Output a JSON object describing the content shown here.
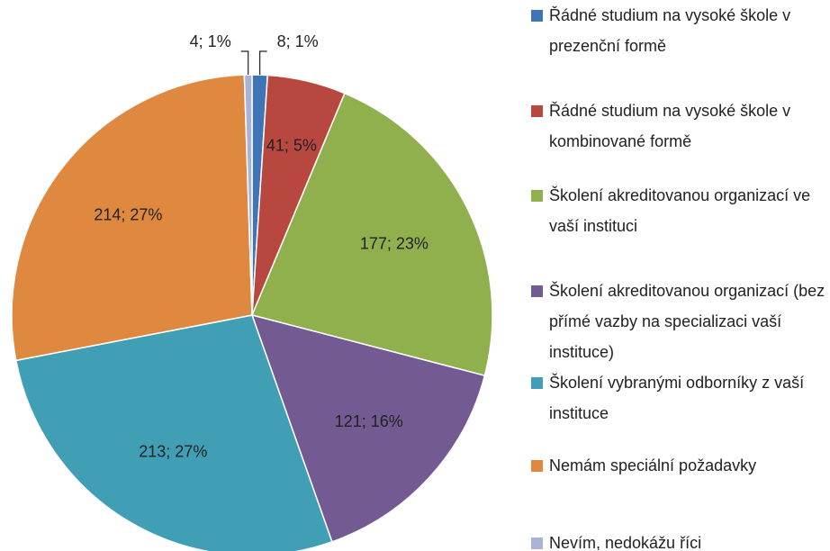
{
  "chart_data": {
    "type": "pie",
    "categories": [
      "Řádné studium na vysoké škole v prezenční formě",
      "Řádné studium na vysoké škole v kombinované formě",
      "Školení akreditovanou organizací ve vaší instituci",
      "Školení akreditovanou organizací (bez přímé vazby na specializaci vaší instituce)",
      "Školení vybranými odborníky z vaší instituce",
      "Nemám speciální požadavky",
      "Nevím, nedokážu říci"
    ],
    "values": [
      8,
      41,
      177,
      121,
      213,
      214,
      4
    ],
    "value_labels": [
      "8; 1%",
      "41; 5%",
      "177; 23%",
      "121; 16%",
      "213; 27%",
      "214; 27%",
      "4; 1%"
    ],
    "colors": [
      "#3f75b7",
      "#b8473f",
      "#8fb04d",
      "#735a93",
      "#419fb5",
      "#df8840",
      "#a9b3d8"
    ],
    "legend": "right"
  }
}
